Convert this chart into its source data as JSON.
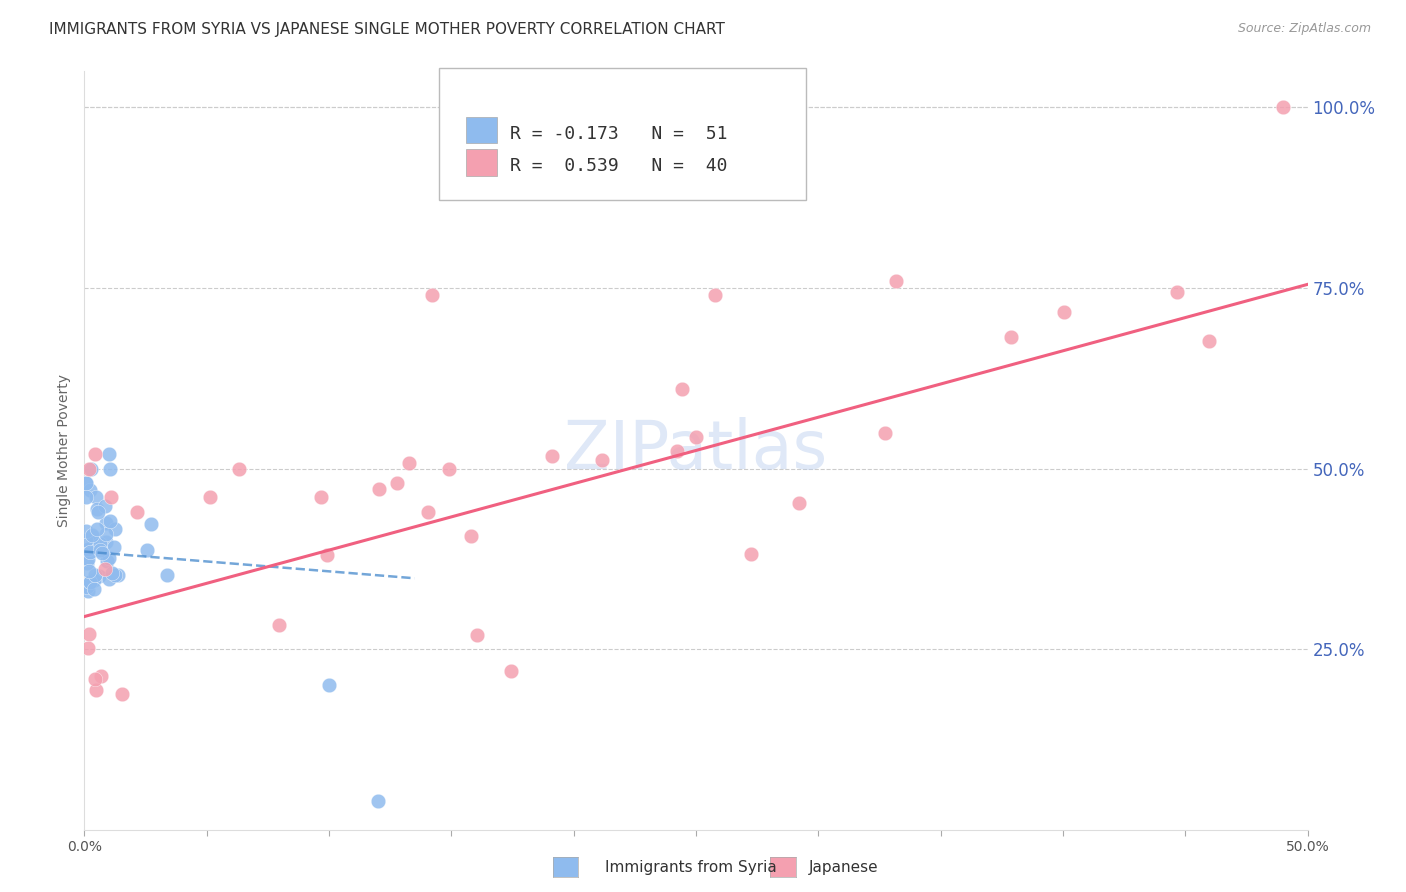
{
  "title": "IMMIGRANTS FROM SYRIA VS JAPANESE SINGLE MOTHER POVERTY CORRELATION CHART",
  "source": "Source: ZipAtlas.com",
  "ylabel": "Single Mother Poverty",
  "legend_label1": "Immigrants from Syria",
  "legend_label2": "Japanese",
  "watermark": "ZIPatlas",
  "x_min": 0.0,
  "x_max": 0.5,
  "y_min": 0.0,
  "y_max": 1.05,
  "yticks": [
    0.25,
    0.5,
    0.75,
    1.0
  ],
  "ytick_labels": [
    "25.0%",
    "50.0%",
    "75.0%",
    "100.0%"
  ],
  "xticks": [
    0.0,
    0.05,
    0.1,
    0.15,
    0.2,
    0.25,
    0.3,
    0.35,
    0.4,
    0.45,
    0.5
  ],
  "color_syria": "#8fbbee",
  "color_japanese": "#f4a0b0",
  "color_syria_line": "#4488cc",
  "color_japanese_line": "#f06080",
  "color_ytick_labels": "#4466bb",
  "syria_line_x": [
    0.0,
    0.135
  ],
  "syria_line_y0": 0.385,
  "syria_line_y1": 0.348,
  "japan_line_x": [
    0.0,
    0.5
  ],
  "japan_line_y0": 0.295,
  "japan_line_y1": 0.755,
  "title_fontsize": 11,
  "source_fontsize": 9,
  "axis_label_fontsize": 10,
  "tick_fontsize": 10,
  "legend_r1": "-0.173",
  "legend_n1": "51",
  "legend_r2": "0.539",
  "legend_n2": "40",
  "legend_fontsize": 13,
  "watermark_fontsize": 48
}
